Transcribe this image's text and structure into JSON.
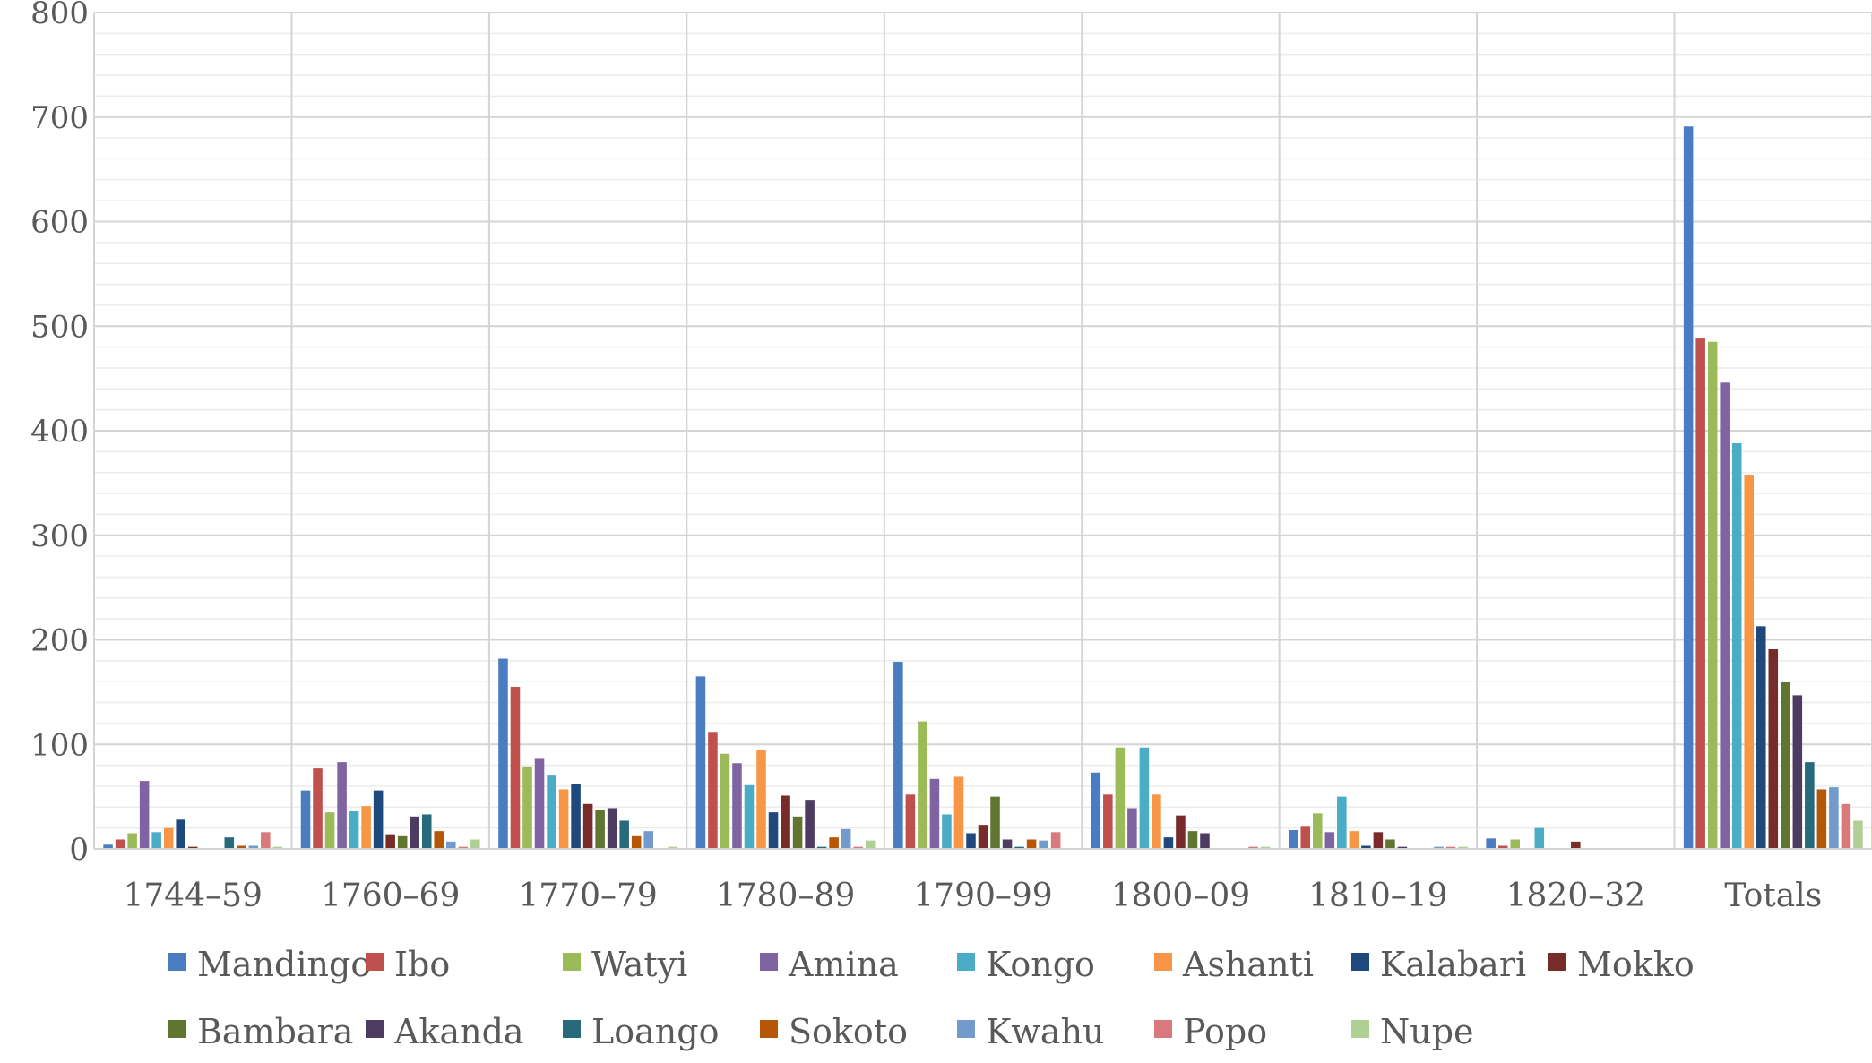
{
  "chart_data": {
    "type": "bar",
    "title": "",
    "xlabel": "",
    "ylabel": "",
    "ylim": [
      0,
      800
    ],
    "y_ticks": [
      0,
      100,
      200,
      300,
      400,
      500,
      600,
      700,
      800
    ],
    "grid": true,
    "legend_position": "bottom",
    "categories": [
      "1744–59",
      "1760–69",
      "1770–79",
      "1780–89",
      "1790–99",
      "1800–09",
      "1810–19",
      "1820–32",
      "Totals"
    ],
    "series": [
      {
        "name": "Mandingo",
        "color": "#4a7cc1",
        "values": [
          4,
          56,
          182,
          165,
          179,
          73,
          18,
          10,
          691
        ]
      },
      {
        "name": "Ibo",
        "color": "#c0504d",
        "values": [
          9,
          77,
          155,
          112,
          52,
          52,
          22,
          3,
          489
        ]
      },
      {
        "name": "Watyi",
        "color": "#9bbb59",
        "values": [
          15,
          35,
          79,
          91,
          122,
          97,
          34,
          9,
          485
        ]
      },
      {
        "name": "Amina",
        "color": "#8064a2",
        "values": [
          65,
          83,
          87,
          82,
          67,
          39,
          16,
          0,
          446
        ]
      },
      {
        "name": "Kongo",
        "color": "#4bacc6",
        "values": [
          16,
          36,
          71,
          61,
          33,
          97,
          50,
          20,
          388
        ]
      },
      {
        "name": "Ashanti",
        "color": "#f79646",
        "values": [
          20,
          41,
          57,
          95,
          69,
          52,
          17,
          0,
          358
        ]
      },
      {
        "name": "Kalabari",
        "color": "#1f497d",
        "values": [
          28,
          56,
          62,
          35,
          15,
          11,
          3,
          0,
          213
        ]
      },
      {
        "name": "Mokko",
        "color": "#772c2a",
        "values": [
          2,
          14,
          43,
          51,
          23,
          32,
          16,
          7,
          191
        ]
      },
      {
        "name": "Bambara",
        "color": "#5f7530",
        "values": [
          0,
          13,
          37,
          31,
          50,
          17,
          9,
          0,
          160
        ]
      },
      {
        "name": "Akanda",
        "color": "#4d3b62",
        "values": [
          0,
          31,
          39,
          47,
          9,
          15,
          2,
          0,
          147
        ]
      },
      {
        "name": "Loango",
        "color": "#276a7c",
        "values": [
          11,
          33,
          27,
          2,
          2,
          0,
          0,
          0,
          83
        ]
      },
      {
        "name": "Sokoto",
        "color": "#b65708",
        "values": [
          3,
          17,
          13,
          11,
          9,
          0,
          0,
          0,
          57
        ]
      },
      {
        "name": "Kwahu",
        "color": "#729aca",
        "values": [
          3,
          7,
          17,
          19,
          8,
          0,
          2,
          0,
          59
        ]
      },
      {
        "name": "Popo",
        "color": "#d9797c",
        "values": [
          16,
          2,
          0,
          2,
          16,
          2,
          2,
          0,
          43
        ]
      },
      {
        "name": "Nupe",
        "color": "#afd095",
        "values": [
          2,
          9,
          2,
          8,
          0,
          2,
          2,
          0,
          27
        ]
      }
    ]
  }
}
